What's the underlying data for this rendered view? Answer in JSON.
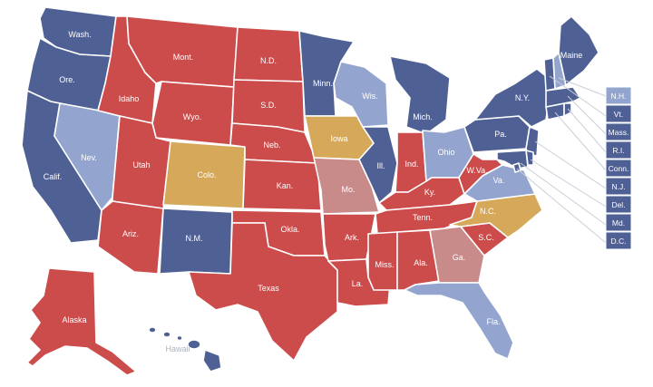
{
  "colors": {
    "solid_dem": "#4e6094",
    "lean_dem": "#93a5cf",
    "tossup": "#d6a85a",
    "lean_rep": "#c98a8a",
    "solid_rep": "#cc4b4b"
  },
  "states": {
    "wash": "Wash.",
    "ore": "Ore.",
    "calif": "Calif.",
    "nev": "Nev.",
    "idaho": "Idaho",
    "mont": "Mont.",
    "wyo": "Wyo.",
    "utah": "Utah",
    "colo": "Colo.",
    "ariz": "Ariz.",
    "nm": "N.M.",
    "nd": "N.D.",
    "sd": "S.D.",
    "neb": "Neb.",
    "kan": "Kan.",
    "okla": "Okla.",
    "texas": "Texas",
    "minn": "Minn.",
    "iowa": "Iowa",
    "mo": "Mo.",
    "ark": "Ark.",
    "la": "La.",
    "wis": "Wis.",
    "ill": "Ill.",
    "mich": "Mich.",
    "ind": "Ind.",
    "ohio": "Ohio",
    "ky": "Ky.",
    "tenn": "Tenn.",
    "miss": "Miss.",
    "ala": "Ala.",
    "ga": "Ga.",
    "fla": "Fla.",
    "sc": "S.C.",
    "nc": "N.C.",
    "va": "Va.",
    "wva": "W.Va.",
    "pa": "Pa.",
    "ny": "N.Y.",
    "maine": "Maine",
    "alaska": "Alaska",
    "hawaii": "Hawaii"
  },
  "small_states": [
    "N.H.",
    "Vt.",
    "Mass.",
    "R.I.",
    "Conn.",
    "N.J.",
    "Del.",
    "Md.",
    "D.C."
  ]
}
